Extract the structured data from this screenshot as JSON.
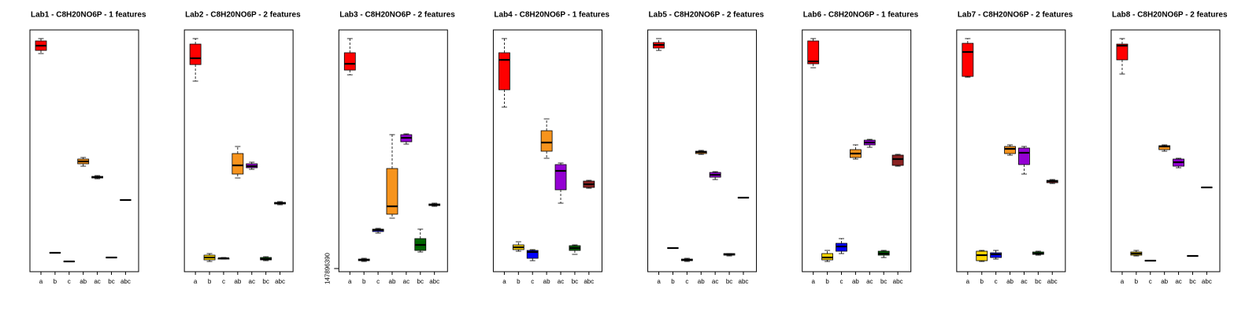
{
  "chart_data": [
    {
      "type": "box",
      "title": "Lab1 - C8H20NO6P - 1 features",
      "categories": [
        "a",
        "b",
        "c",
        "ab",
        "ac",
        "bc",
        "abc"
      ],
      "colors": [
        "#FF0000",
        "#FFD700",
        "#0000FF",
        "#F7941D",
        "#9400D3",
        "#006400",
        "#8B2323"
      ],
      "ylim": [
        0,
        307
      ],
      "values": [
        [
          277,
          281,
          287,
          293,
          296
        ],
        [
          24,
          24,
          24,
          24,
          24
        ],
        [
          13,
          13,
          13,
          13,
          13
        ],
        [
          134,
          137,
          140,
          143,
          145
        ],
        [
          118,
          119,
          120,
          121,
          122
        ],
        [
          18,
          18,
          18,
          18,
          18
        ],
        [
          91,
          91,
          91,
          91,
          91
        ]
      ]
    },
    {
      "type": "box",
      "title": "Lab2 - C8H20NO6P - 2 features",
      "categories": [
        "a",
        "b",
        "c",
        "ab",
        "ac",
        "bc",
        "abc"
      ],
      "colors": [
        "#FF0000",
        "#FFD700",
        "#0000FF",
        "#F7941D",
        "#9400D3",
        "#006400",
        "#8B2323"
      ],
      "ylim": [
        0,
        307
      ],
      "values": [
        [
          242,
          263,
          271,
          289,
          296
        ],
        [
          13,
          15,
          18,
          21,
          23
        ],
        [
          16,
          16,
          17,
          17,
          18
        ],
        [
          119,
          124,
          135,
          150,
          159
        ],
        [
          130,
          132,
          134,
          137,
          139
        ],
        [
          14,
          15,
          16,
          18,
          19
        ],
        [
          85,
          86,
          87,
          88,
          89
        ]
      ]
    },
    {
      "type": "box",
      "title": "Lab3 - C8H20NO6P - 2 features",
      "categories": [
        "a",
        "b",
        "c",
        "ab",
        "ac",
        "bc",
        "abc"
      ],
      "colors": [
        "#FF0000",
        "#FFD700",
        "#0000FF",
        "#F7941D",
        "#9400D3",
        "#006400",
        "#8B2323"
      ],
      "ylim": [
        143900000,
        450900000
      ],
      "yticks": [
        147896390
      ],
      "values": [
        [
          393900000,
          399900000,
          407900000,
          421900000,
          439900000
        ],
        [
          156900000,
          157900000,
          158900000,
          159900000,
          160900000
        ],
        [
          192900000,
          194900000,
          196900000,
          197900000,
          198900000
        ],
        [
          211900000,
          216900000,
          226900000,
          274900000,
          317900000
        ],
        [
          305900000,
          308900000,
          313900000,
          317900000,
          318900000
        ],
        [
          168900000,
          170900000,
          177900000,
          185900000,
          197900000
        ],
        [
          226900000,
          227900000,
          228900000,
          229900000,
          230900000
        ]
      ]
    },
    {
      "type": "box",
      "title": "Lab4 - C8H20NO6P - 1 features",
      "categories": [
        "a",
        "b",
        "c",
        "ab",
        "ac",
        "bc",
        "abc"
      ],
      "colors": [
        "#FF0000",
        "#FFD700",
        "#0000FF",
        "#F7941D",
        "#9400D3",
        "#006400",
        "#8B2323"
      ],
      "ylim": [
        0,
        307
      ],
      "values": [
        [
          209,
          231,
          269,
          278,
          296
        ],
        [
          26,
          28,
          31,
          34,
          38
        ],
        [
          14,
          17,
          25,
          27,
          28
        ],
        [
          144,
          153,
          164,
          179,
          194
        ],
        [
          87,
          104,
          128,
          136,
          138
        ],
        [
          22,
          27,
          30,
          33,
          34
        ],
        [
          106,
          107,
          111,
          115,
          116
        ]
      ]
    },
    {
      "type": "box",
      "title": "Lab5 - C8H20NO6P - 2 features",
      "categories": [
        "a",
        "b",
        "c",
        "ab",
        "ac",
        "bc",
        "abc"
      ],
      "colors": [
        "#FF0000",
        "#FFD700",
        "#0000FF",
        "#F7941D",
        "#9400D3",
        "#006400",
        "#8B2323"
      ],
      "ylim": [
        0,
        307
      ],
      "values": [
        [
          281,
          284,
          288,
          291,
          296
        ],
        [
          30,
          30,
          30,
          30,
          30
        ],
        [
          13,
          14,
          15,
          16,
          17
        ],
        [
          149,
          150,
          152,
          153,
          154
        ],
        [
          117,
          120,
          123,
          126,
          127
        ],
        [
          20,
          21,
          22,
          23,
          23
        ],
        [
          94,
          94,
          94,
          94,
          94
        ]
      ]
    },
    {
      "type": "box",
      "title": "Lab6 - C8H20NO6P - 1 features",
      "categories": [
        "a",
        "b",
        "c",
        "ab",
        "ac",
        "bc",
        "abc"
      ],
      "colors": [
        "#FF0000",
        "#FFD700",
        "#0000FF",
        "#F7941D",
        "#9400D3",
        "#006400",
        "#8B2323"
      ],
      "ylim": [
        0,
        307
      ],
      "values": [
        [
          259,
          264,
          267,
          293,
          296
        ],
        [
          13,
          15,
          18,
          23,
          27
        ],
        [
          23,
          26,
          32,
          36,
          42
        ],
        [
          143,
          145,
          150,
          155,
          161
        ],
        [
          158,
          161,
          164,
          167,
          168
        ],
        [
          18,
          21,
          23,
          26,
          27
        ],
        [
          134,
          135,
          143,
          148,
          149
        ]
      ]
    },
    {
      "type": "box",
      "title": "Lab7 - C8H20NO6P - 2 features",
      "categories": [
        "a",
        "b",
        "c",
        "ab",
        "ac",
        "bc",
        "abc"
      ],
      "colors": [
        "#FF0000",
        "#FFD700",
        "#0000FF",
        "#F7941D",
        "#9400D3",
        "#006400",
        "#8B2323"
      ],
      "ylim": [
        0,
        307
      ],
      "values": [
        [
          247,
          248,
          279,
          290,
          296
        ],
        [
          13,
          14,
          21,
          26,
          27
        ],
        [
          16,
          18,
          22,
          24,
          27
        ],
        [
          148,
          150,
          156,
          159,
          161
        ],
        [
          124,
          136,
          151,
          157,
          159
        ],
        [
          21,
          22,
          23,
          25,
          26
        ],
        [
          112,
          113,
          115,
          116,
          117
        ]
      ]
    },
    {
      "type": "box",
      "title": "Lab8 - C8H20NO6P - 2 features",
      "categories": [
        "a",
        "b",
        "c",
        "ab",
        "ac",
        "bc",
        "abc"
      ],
      "colors": [
        "#FF0000",
        "#FFD700",
        "#0000FF",
        "#F7941D",
        "#9400D3",
        "#006400",
        "#8B2323"
      ],
      "ylim": [
        0,
        307
      ],
      "values": [
        [
          251,
          269,
          287,
          289,
          296
        ],
        [
          20,
          21,
          23,
          25,
          27
        ],
        [
          14,
          14,
          14,
          14,
          14
        ],
        [
          153,
          155,
          159,
          160,
          161
        ],
        [
          132,
          134,
          139,
          143,
          144
        ],
        [
          20,
          20,
          20,
          20,
          20
        ],
        [
          107,
          107,
          107,
          107,
          107
        ]
      ]
    }
  ]
}
